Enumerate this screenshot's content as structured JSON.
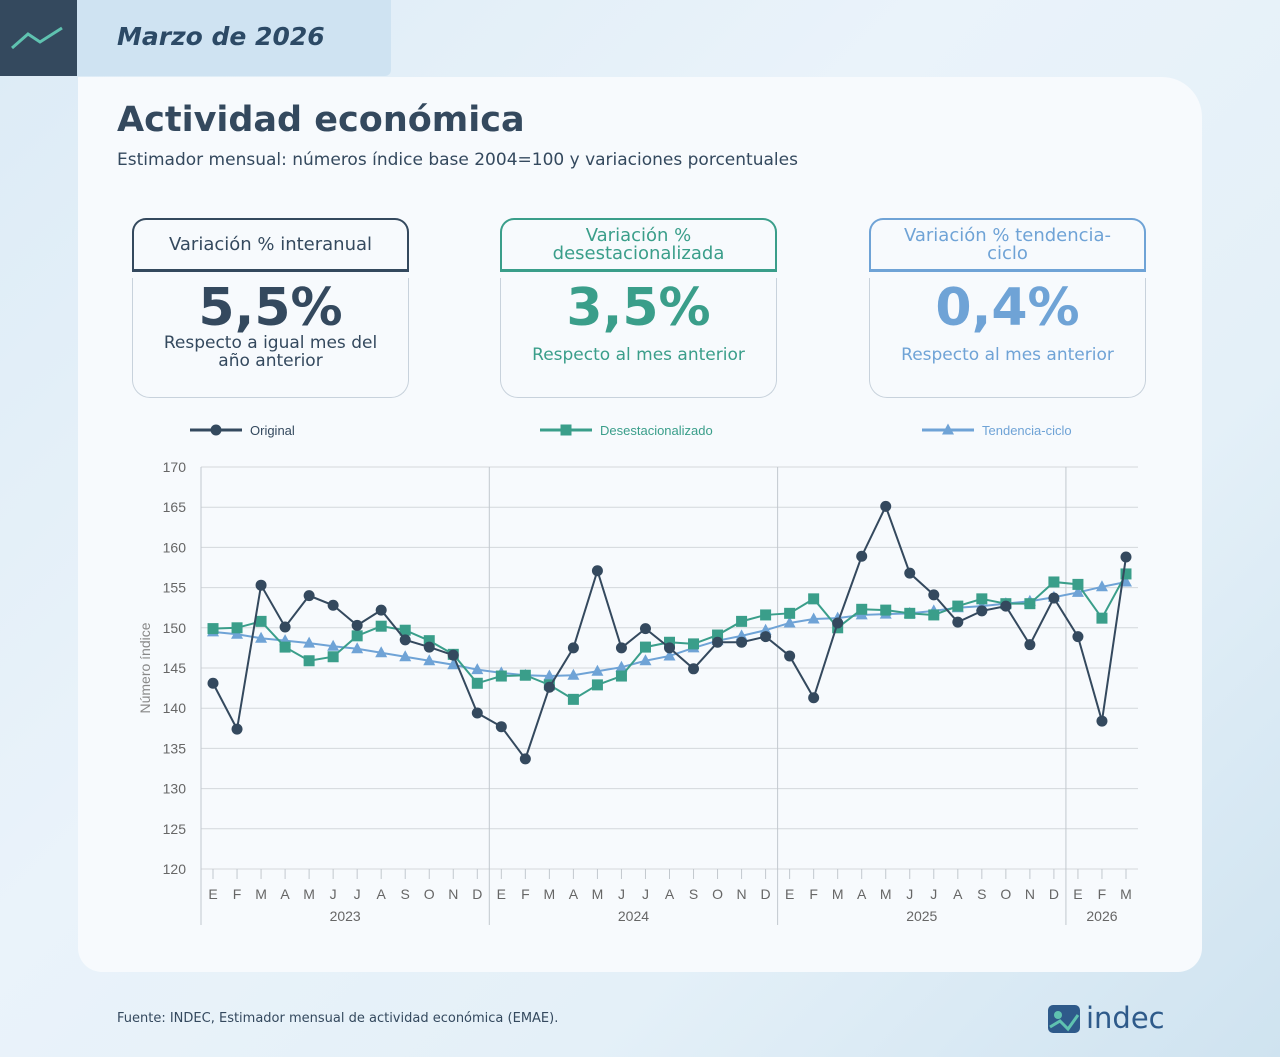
{
  "header": {
    "date": "Marzo de 2026"
  },
  "title": "Actividad económica",
  "subtitle": "Estimador mensual: números índice base 2004=100 y variaciones porcentuales",
  "cards": [
    {
      "title": "Variación % interanual",
      "value": "5,5%",
      "note": "Respecto a igual mes del año anterior",
      "color": "#34495e"
    },
    {
      "title": "Variación % desestacionalizada",
      "value": "3,5%",
      "note": "Respecto al mes anterior",
      "color": "#3a9e8a"
    },
    {
      "title": "Variación % tendencia-ciclo",
      "value": "0,4%",
      "note": "Respecto al mes anterior",
      "color": "#6fa3d6"
    }
  ],
  "chart_data": {
    "type": "line",
    "y_label": "Número índice",
    "categories": [
      "E",
      "F",
      "M",
      "A",
      "M",
      "J",
      "J",
      "A",
      "S",
      "O",
      "N",
      "D",
      "E",
      "F",
      "M",
      "A",
      "M",
      "J",
      "J",
      "A",
      "S",
      "O",
      "N",
      "D",
      "E",
      "F",
      "M",
      "A",
      "M",
      "J",
      "J",
      "A",
      "S",
      "O",
      "N",
      "D",
      "E",
      "F",
      "M"
    ],
    "groups": [
      "2023",
      "2024",
      "2025",
      "2026"
    ],
    "ylim": [
      120,
      170
    ],
    "yticks": [
      120,
      125,
      130,
      135,
      140,
      145,
      150,
      155,
      160,
      165,
      170
    ],
    "grid": true,
    "series": [
      {
        "name": "Original",
        "color": "#34495e",
        "marker": "circle",
        "values": [
          143.1,
          137.4,
          155.3,
          150.1,
          154.0,
          152.8,
          150.3,
          152.2,
          148.5,
          147.6,
          146.6,
          139.4,
          137.7,
          133.7,
          142.6,
          147.5,
          157.1,
          147.5,
          149.9,
          147.5,
          144.9,
          148.2,
          148.2,
          148.9,
          146.5,
          141.3,
          150.6,
          158.9,
          165.1,
          156.8,
          154.1,
          150.7,
          152.1,
          152.7,
          147.9,
          153.7,
          148.9,
          138.4,
          158.8
        ]
      },
      {
        "name": "Desestacionalizado",
        "color": "#3a9e8a",
        "marker": "square",
        "values": [
          149.9,
          150.0,
          150.8,
          147.6,
          145.9,
          146.4,
          149.0,
          150.2,
          149.7,
          148.4,
          146.7,
          143.1,
          144.0,
          144.1,
          142.9,
          141.1,
          142.9,
          144.0,
          147.6,
          148.2,
          148.0,
          149.1,
          150.8,
          151.6,
          151.8,
          153.6,
          150.0,
          152.3,
          152.2,
          151.8,
          151.6,
          152.7,
          153.6,
          153.0,
          153.0,
          155.7,
          155.4,
          151.2,
          156.7
        ]
      },
      {
        "name": "Tendencia-ciclo",
        "color": "#6fa3d6",
        "marker": "triangle",
        "values": [
          149.5,
          149.2,
          148.7,
          148.4,
          148.1,
          147.7,
          147.4,
          146.9,
          146.4,
          145.9,
          145.4,
          144.8,
          144.4,
          144.1,
          144.0,
          144.1,
          144.6,
          145.1,
          145.9,
          146.5,
          147.5,
          148.4,
          149.0,
          149.7,
          150.6,
          151.1,
          151.2,
          151.6,
          151.7,
          151.8,
          152.1,
          152.5,
          152.7,
          153.0,
          153.3,
          153.8,
          154.4,
          155.1,
          155.7
        ]
      }
    ]
  },
  "source": "Fuente: INDEC, Estimador mensual de actividad económica (EMAE).",
  "logo": "indec"
}
